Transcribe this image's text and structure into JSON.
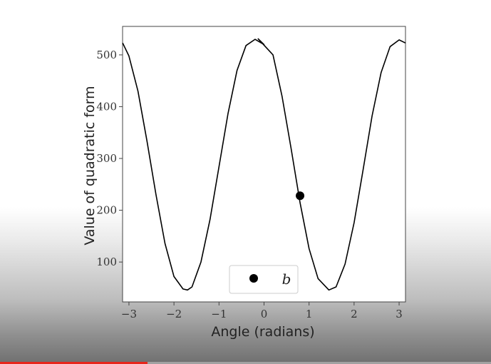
{
  "chart_data": {
    "type": "line",
    "title": "",
    "xlabel": "Angle (radians)",
    "ylabel": "Value of quadratic form",
    "xlim": [
      -3.14159,
      3.14159
    ],
    "ylim": [
      23,
      555
    ],
    "x_ticks": [
      -3,
      -2,
      -1,
      0,
      1,
      2,
      3
    ],
    "x_tick_labels": [
      "−3",
      "−2",
      "−1",
      "0",
      "1",
      "2",
      "3"
    ],
    "y_ticks": [
      100,
      200,
      300,
      400,
      500
    ],
    "y_tick_labels": [
      "100",
      "200",
      "300",
      "400",
      "500"
    ],
    "series": [
      {
        "type": "line",
        "x": [
          -3.14,
          -3.0,
          -2.8,
          -2.6,
          -2.4,
          -2.2,
          -2.0,
          -1.8,
          -1.7,
          -1.6,
          -1.4,
          -1.2,
          -1.0,
          -0.8,
          -0.6,
          -0.4,
          -0.2,
          0.0,
          -0.13,
          0.2,
          0.4,
          0.6,
          0.8,
          1.0,
          1.2,
          1.44,
          1.6,
          1.8,
          2.0,
          2.2,
          2.4,
          2.6,
          2.8,
          3.0,
          3.14
        ],
        "y": [
          523,
          498,
          430,
          334,
          230,
          136,
          72,
          48,
          46,
          52,
          100,
          182,
          284,
          387,
          470,
          518,
          530,
          520,
          531,
          500,
          420,
          320,
          215,
          126,
          68,
          46,
          52,
          96,
          176,
          278,
          382,
          466,
          516,
          529,
          523
        ],
        "color": "#000000"
      },
      {
        "type": "scatter",
        "name": "b",
        "x": [
          0.8
        ],
        "y": [
          228
        ],
        "color": "#000000"
      }
    ],
    "legend": {
      "placement": "bottom-center",
      "entries": [
        "b"
      ]
    },
    "grid": false
  },
  "video": {
    "progress_fraction": 0.3,
    "progress_color": "#e8261c"
  }
}
